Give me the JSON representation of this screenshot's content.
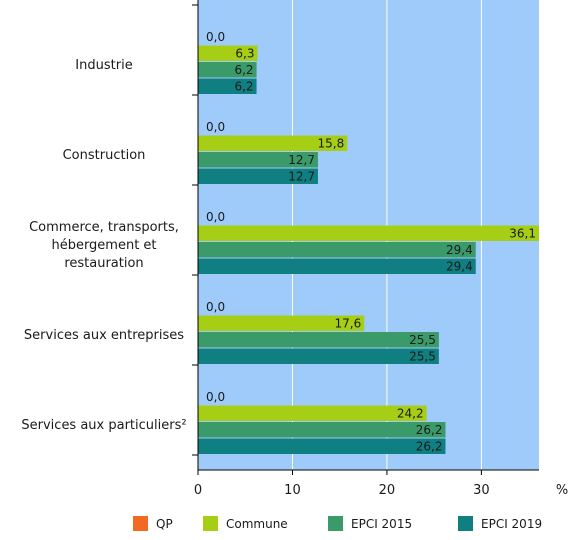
{
  "chart_data": {
    "type": "bar",
    "orientation": "horizontal",
    "categories": [
      [
        "Industrie"
      ],
      [
        "Construction"
      ],
      [
        "Commerce, transports,",
        "hébergement et",
        "restauration"
      ],
      [
        "Services aux entreprises"
      ],
      [
        "Services aux particuliers²"
      ]
    ],
    "series": [
      {
        "name": "QP",
        "color": "#f26a21",
        "values": [
          0.0,
          0.0,
          0.0,
          0.0,
          0.0
        ],
        "labels": [
          "0,0",
          "0,0",
          "0,0",
          "0,0",
          "0,0"
        ]
      },
      {
        "name": "Commune",
        "color": "#a6ce14",
        "values": [
          6.3,
          15.8,
          36.1,
          17.6,
          24.2
        ],
        "labels": [
          "6,3",
          "15,8",
          "36,1",
          "17,6",
          "24,2"
        ]
      },
      {
        "name": "EPCI 2015",
        "color": "#3a9a6a",
        "values": [
          6.2,
          12.7,
          29.4,
          25.5,
          26.2
        ],
        "labels": [
          "6,2",
          "12,7",
          "29,4",
          "25,5",
          "26,2"
        ]
      },
      {
        "name": "EPCI 2019",
        "color": "#0f7f82",
        "values": [
          6.2,
          12.7,
          29.4,
          25.5,
          26.2
        ],
        "labels": [
          "6,2",
          "12,7",
          "29,4",
          "25,5",
          "26,2"
        ]
      }
    ],
    "xlim": [
      0,
      36.1
    ],
    "xticks": [
      0,
      10,
      20,
      30
    ],
    "xtick_labels": [
      "0",
      "10",
      "20",
      "30"
    ],
    "xlabel": "%",
    "grid": true,
    "plot_background": "#9fcbfa",
    "legend_position": "bottom"
  }
}
